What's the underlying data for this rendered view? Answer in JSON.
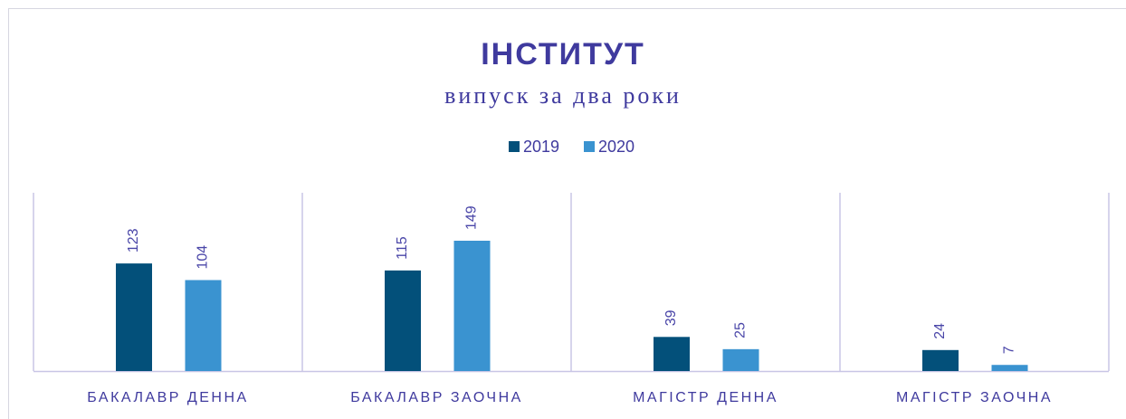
{
  "chart_data": {
    "type": "bar",
    "title": "ІНСТИТУТ",
    "subtitle": "випуск за два роки",
    "categories": [
      "БАКАЛАВР ДЕННА",
      "БАКАЛАВР ЗАОЧНА",
      "МАГІСТР ДЕННА",
      "МАГІСТР ЗАОЧНА"
    ],
    "series": [
      {
        "name": "2019",
        "color": "#03507a",
        "values": [
          123,
          115,
          39,
          24
        ]
      },
      {
        "name": "2020",
        "color": "#3a93d0",
        "values": [
          104,
          149,
          25,
          7
        ]
      }
    ],
    "legend": "top"
  }
}
